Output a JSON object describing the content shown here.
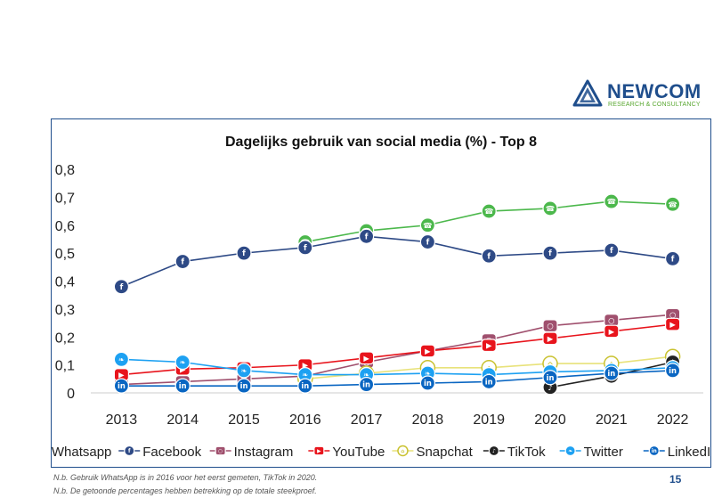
{
  "brand": {
    "name": "NEWCOM",
    "tagline": "RESEARCH & CONSULTANCY",
    "name_color": "#1f4e8c",
    "tagline_color": "#5aa832"
  },
  "footnotes": [
    "N.b. Gebruik WhatsApp is in 2016 voor het eerst gemeten, TikTok in 2020.",
    "N.b. De getoonde percentages hebben betrekking op de totale steekproef."
  ],
  "page_number": "15",
  "chart_data": {
    "type": "line",
    "title": "Dagelijks gebruik van social media (%) - Top 8",
    "xlabel": "",
    "ylabel": "",
    "x": [
      "2013",
      "2014",
      "2015",
      "2016",
      "2017",
      "2018",
      "2019",
      "2020",
      "2021",
      "2022"
    ],
    "ylim": [
      0,
      0.8
    ],
    "yticks": [
      "0",
      "0,1",
      "0,2",
      "0,3",
      "0,4",
      "0,5",
      "0,6",
      "0,7",
      "0,8"
    ],
    "grid": false,
    "legend_position": "bottom",
    "series": [
      {
        "name": "Whatsapp",
        "color": "#4cb84c",
        "icon": "whatsapp-icon",
        "values": [
          null,
          null,
          null,
          0.54,
          0.58,
          0.6,
          0.65,
          0.66,
          0.685,
          0.675
        ]
      },
      {
        "name": "Facebook",
        "color": "#2e4a86",
        "icon": "facebook-icon",
        "values": [
          0.38,
          0.47,
          0.5,
          0.52,
          0.56,
          0.54,
          0.49,
          0.5,
          0.51,
          0.48
        ]
      },
      {
        "name": "Instagram",
        "color": "#a0506e",
        "icon": "instagram-icon",
        "values": [
          0.03,
          0.04,
          0.05,
          0.06,
          0.11,
          0.15,
          0.19,
          0.24,
          0.26,
          0.28
        ]
      },
      {
        "name": "YouTube",
        "color": "#e8141c",
        "icon": "youtube-icon",
        "values": [
          0.065,
          0.085,
          0.09,
          0.1,
          0.125,
          0.15,
          0.17,
          0.195,
          0.22,
          0.245
        ]
      },
      {
        "name": "Snapchat",
        "color": "#e8e27a",
        "icon": "snapchat-icon",
        "values": [
          null,
          null,
          null,
          0.05,
          0.07,
          0.09,
          0.09,
          0.105,
          0.105,
          0.13
        ]
      },
      {
        "name": "TikTok",
        "color": "#222222",
        "icon": "tiktok-icon",
        "values": [
          null,
          null,
          null,
          null,
          null,
          null,
          null,
          0.02,
          0.06,
          0.11
        ]
      },
      {
        "name": "Twitter",
        "color": "#1da1f2",
        "icon": "twitter-icon",
        "values": [
          0.12,
          0.11,
          0.08,
          0.065,
          0.065,
          0.07,
          0.065,
          0.075,
          0.08,
          0.09
        ]
      },
      {
        "name": "LinkedIn",
        "color": "#0a66c2",
        "icon": "linkedin-icon",
        "values": [
          0.025,
          0.025,
          0.025,
          0.025,
          0.03,
          0.035,
          0.04,
          0.055,
          0.07,
          0.08
        ]
      }
    ]
  }
}
